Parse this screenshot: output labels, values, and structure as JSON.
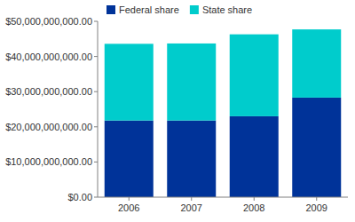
{
  "chart_data": {
    "type": "bar",
    "stacked": true,
    "legend": "top",
    "grid": false,
    "categories": [
      "2006",
      "2007",
      "2008",
      "2009"
    ],
    "series": [
      {
        "name": "Federal share",
        "color": "#003399",
        "values": [
          21800000000,
          21800000000,
          23000000000,
          28300000000
        ]
      },
      {
        "name": "State share",
        "color": "#00cccc",
        "values": [
          21800000000,
          21900000000,
          23300000000,
          19400000000
        ]
      }
    ],
    "ylim": [
      0,
      50000000000
    ],
    "yticks": [
      {
        "value": 0,
        "label": "$0.00"
      },
      {
        "value": 10000000000,
        "label": "$10,000,000,000.00"
      },
      {
        "value": 20000000000,
        "label": "$20,000,000,000.00"
      },
      {
        "value": 30000000000,
        "label": "$30,000,000,000.00"
      },
      {
        "value": 40000000000,
        "label": "$40,000,000,000.00"
      },
      {
        "value": 50000000000,
        "label": "$50,000,000,000.00"
      }
    ]
  }
}
